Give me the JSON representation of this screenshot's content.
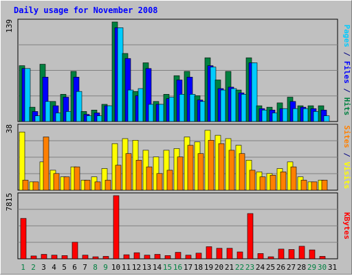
{
  "chart_data": [
    {
      "type": "bar",
      "title": "Daily usage for November 2008",
      "ymax_label": "139",
      "ylabel_parts": [
        {
          "text": "Pages",
          "color": "#00ccff"
        },
        {
          "text": " / ",
          "color": "#000080"
        },
        {
          "text": "Files",
          "color": "#0000ff"
        },
        {
          "text": " / ",
          "color": "#000080"
        },
        {
          "text": "Hits",
          "color": "#008040"
        }
      ],
      "ymax": 139,
      "series": [
        {
          "name": "Hits",
          "color": "#008040",
          "values": [
            78,
            20,
            80,
            28,
            38,
            70,
            14,
            16,
            24,
            139,
            95,
            42,
            82,
            28,
            38,
            64,
            70,
            36,
            89,
            58,
            70,
            44,
            89,
            22,
            20,
            26,
            34,
            22,
            22,
            22,
            0
          ]
        },
        {
          "name": "Files",
          "color": "#0000ff",
          "values": [
            74,
            14,
            62,
            22,
            34,
            62,
            10,
            12,
            22,
            131,
            88,
            36,
            74,
            24,
            32,
            58,
            62,
            30,
            78,
            46,
            48,
            40,
            82,
            18,
            16,
            18,
            28,
            20,
            18,
            16,
            0
          ]
        },
        {
          "name": "Pages",
          "color": "#00ccff",
          "values": [
            74,
            8,
            28,
            12,
            14,
            42,
            8,
            8,
            22,
            131,
            44,
            46,
            24,
            24,
            34,
            38,
            38,
            28,
            76,
            44,
            46,
            38,
            82,
            16,
            12,
            18,
            18,
            18,
            14,
            8,
            0
          ]
        }
      ]
    },
    {
      "type": "bar",
      "ymax_label": "38",
      "ylabel_parts": [
        {
          "text": "Sites",
          "color": "#ff8000"
        },
        {
          "text": " / ",
          "color": "#000080"
        },
        {
          "text": "Visits",
          "color": "#ffff00"
        }
      ],
      "ymax": 38,
      "series": [
        {
          "name": "Visits",
          "color": "#ffff00",
          "values": [
            35,
            5,
            17,
            12,
            8,
            14,
            6,
            8,
            13,
            28,
            31,
            30,
            24,
            20,
            24,
            25,
            32,
            29,
            36,
            33,
            31,
            27,
            18,
            11,
            10,
            13,
            17,
            8,
            5,
            6,
            0
          ]
        },
        {
          "name": "Sites",
          "color": "#ff8000",
          "values": [
            6,
            5,
            32,
            10,
            8,
            14,
            6,
            5,
            6,
            15,
            22,
            18,
            14,
            10,
            12,
            20,
            27,
            22,
            30,
            28,
            24,
            22,
            12,
            8,
            9,
            11,
            14,
            6,
            5,
            6,
            0
          ]
        }
      ]
    },
    {
      "type": "bar",
      "ymax_label": "7815",
      "ylabel_parts": [
        {
          "text": "KBytes",
          "color": "#ff0000"
        }
      ],
      "ymax": 7815,
      "series": [
        {
          "name": "KBytes",
          "color": "#ff0000",
          "values": [
            5000,
            350,
            550,
            450,
            400,
            2050,
            450,
            250,
            300,
            7815,
            500,
            750,
            450,
            550,
            400,
            800,
            450,
            700,
            1500,
            1300,
            1300,
            850,
            5600,
            650,
            250,
            1200,
            1150,
            1550,
            1100,
            300,
            0
          ]
        }
      ]
    }
  ],
  "x_days": [
    "1",
    "2",
    "3",
    "4",
    "5",
    "6",
    "7",
    "8",
    "9",
    "10",
    "11",
    "12",
    "13",
    "14",
    "15",
    "16",
    "17",
    "18",
    "19",
    "20",
    "21",
    "22",
    "23",
    "24",
    "25",
    "26",
    "27",
    "28",
    "29",
    "30",
    "31"
  ],
  "weekend_days": [
    "1",
    "2",
    "8",
    "9",
    "15",
    "16",
    "22",
    "23",
    "29",
    "30"
  ],
  "colors": {
    "background": "#c0c0c0",
    "plot_background": "#c0c0c0",
    "grid": "#808080",
    "title": "#0000ff",
    "weekend_label": "#008040",
    "weekday_label": "#000000"
  }
}
